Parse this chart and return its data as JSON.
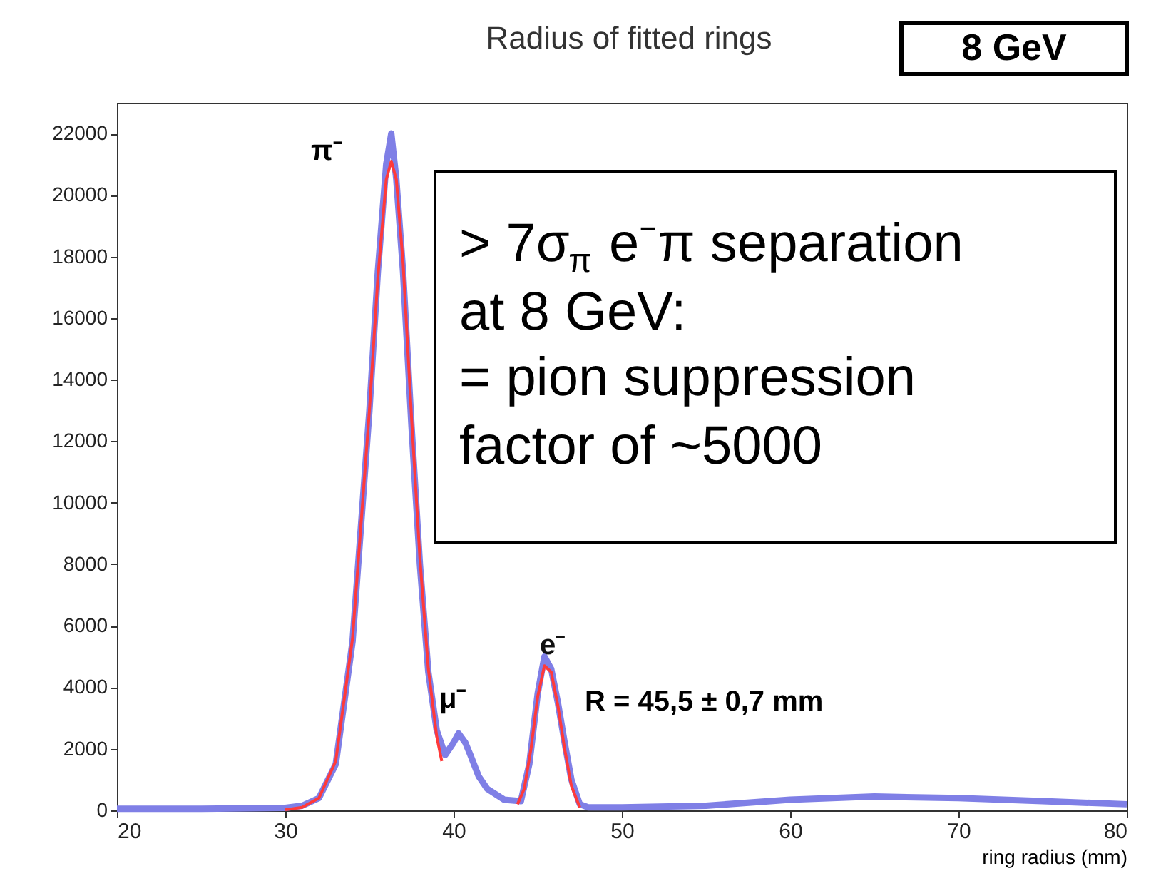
{
  "chart_data": {
    "type": "line",
    "title": "Radius of fitted rings",
    "xlabel": "ring radius (mm)",
    "xlim": [
      20,
      80
    ],
    "xticks": [
      20,
      30,
      40,
      50,
      60,
      70,
      80
    ],
    "ylim": [
      0,
      23000
    ],
    "yticks": [
      0,
      2000,
      4000,
      6000,
      8000,
      10000,
      12000,
      14000,
      16000,
      18000,
      20000,
      22000
    ],
    "grid": false,
    "series": [
      {
        "color": "#7f7fe6",
        "x": [
          20,
          25,
          30,
          31,
          32,
          33,
          34,
          35,
          35.5,
          36,
          36.3,
          36.6,
          37,
          37.5,
          38,
          38.5,
          39,
          39.5,
          40,
          40.3,
          40.7,
          41,
          41.5,
          42,
          43,
          44,
          44.5,
          45,
          45.4,
          45.8,
          46.2,
          46.6,
          47,
          47.5,
          48,
          50,
          55,
          60,
          65,
          70,
          75,
          80
        ],
        "values": [
          50,
          50,
          80,
          150,
          400,
          1500,
          5500,
          13000,
          17500,
          21000,
          22000,
          20500,
          17500,
          12500,
          8000,
          4500,
          2600,
          1800,
          2200,
          2500,
          2200,
          1800,
          1100,
          700,
          350,
          300,
          1500,
          3800,
          5000,
          4600,
          3500,
          2200,
          1000,
          200,
          100,
          100,
          150,
          350,
          450,
          400,
          300,
          200
        ]
      },
      {
        "color": "#ff3a3a",
        "x": [
          30,
          31,
          32,
          33,
          34,
          35,
          35.5,
          36,
          36.3,
          36.6,
          37,
          37.5,
          38,
          38.5,
          39,
          39.3
        ],
        "values": [
          20,
          100,
          400,
          1600,
          5600,
          13000,
          17300,
          20500,
          21100,
          20500,
          17800,
          12800,
          8200,
          4600,
          2400,
          1600
        ]
      },
      {
        "color": "#ff3a3a",
        "x": [
          43.8,
          44.2,
          44.6,
          45,
          45.4,
          45.8,
          46.2,
          46.6,
          47,
          47.5
        ],
        "values": [
          200,
          700,
          2000,
          3700,
          4700,
          4500,
          3400,
          2000,
          800,
          100
        ]
      }
    ],
    "annotations": [
      "π⁻",
      "μ⁻",
      {
        "text": "e⁻",
        "x": 45.9,
        "y": 4900
      },
      "R = 45,5 ± 0,7 mm",
      "8 GeV",
      "> 7σ$_{π}$ e⁻π separation",
      "at 8 GeV:",
      "= pion suppression",
      "factor of ~5000"
    ]
  }
}
